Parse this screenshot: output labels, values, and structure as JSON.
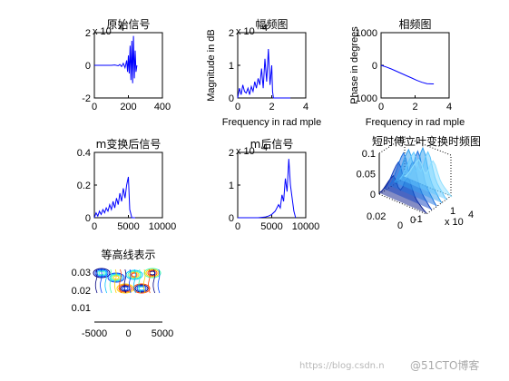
{
  "colors": {
    "line": "#0000ff",
    "axis": "#000000",
    "background": "#ffffff"
  },
  "chart_data": [
    {
      "id": "p1",
      "type": "line",
      "title": "原始信号",
      "exponent_label": "x 10",
      "exponent_power": "4",
      "xlim": [
        0,
        400
      ],
      "ylim": [
        -2,
        2
      ],
      "xticks": [
        "0",
        "200",
        "400"
      ],
      "yticks": [
        "-2",
        "0",
        "2"
      ],
      "series": [
        {
          "x": [
            0,
            100,
            120,
            140,
            150,
            160,
            170,
            180,
            190,
            195,
            200,
            205,
            210,
            215,
            220,
            225,
            230,
            235,
            240,
            245,
            250
          ],
          "y": [
            0,
            0,
            0.02,
            -0.03,
            0.05,
            -0.08,
            0.12,
            -0.15,
            0.3,
            -0.4,
            0.6,
            -0.5,
            1.2,
            -0.9,
            1.5,
            -1.1,
            1.8,
            -0.8,
            0.9,
            -0.4,
            0
          ]
        }
      ]
    },
    {
      "id": "p2",
      "type": "line",
      "title": "幅频图",
      "exponent_label": "x 10",
      "exponent_power": "4",
      "ylabel": "Magnitude in dB",
      "xlabel": "Frequency in rad mple",
      "xlim": [
        0,
        4
      ],
      "ylim": [
        0,
        2
      ],
      "xticks": [
        "0",
        "2",
        "4"
      ],
      "yticks": [
        "0",
        "1",
        "2"
      ],
      "series": [
        {
          "x": [
            0,
            0.1,
            0.2,
            0.3,
            0.4,
            0.5,
            0.6,
            0.7,
            0.8,
            0.9,
            1.0,
            1.1,
            1.2,
            1.3,
            1.4,
            1.5,
            1.6,
            1.7,
            1.8,
            1.9,
            2.0,
            2.05,
            2.1,
            2.2,
            2.5,
            3.0,
            3.1
          ],
          "y": [
            0,
            0.3,
            0.1,
            0.4,
            0.2,
            0.15,
            0.3,
            0.1,
            0.35,
            0.2,
            0.5,
            0.3,
            0.6,
            0.4,
            0.9,
            0.3,
            1.2,
            0.5,
            1.5,
            0.4,
            1.0,
            0.2,
            0,
            0,
            0,
            0,
            0
          ]
        }
      ]
    },
    {
      "id": "p3",
      "type": "line",
      "title": "相频图",
      "ylabel": "Phase in degrees",
      "xlabel": "Frequency in rad mple",
      "xlim": [
        0,
        4
      ],
      "ylim": [
        -1000,
        1000
      ],
      "xticks": [
        "0",
        "2",
        "4"
      ],
      "yticks": [
        "-1000",
        "0",
        "1000"
      ],
      "series": [
        {
          "x": [
            0,
            0.3,
            0.6,
            0.9,
            1.2,
            1.5,
            1.8,
            2.1,
            2.4,
            2.7,
            3.0,
            3.1
          ],
          "y": [
            0,
            -50,
            -110,
            -180,
            -250,
            -320,
            -390,
            -460,
            -520,
            -560,
            -570,
            -570
          ]
        }
      ]
    },
    {
      "id": "p4",
      "type": "line",
      "title": "m变换后信号",
      "xlim": [
        0,
        10000
      ],
      "ylim": [
        0,
        0.4
      ],
      "xticks": [
        "0",
        "5000",
        "10000"
      ],
      "yticks": [
        "0",
        "0.2",
        "0.4"
      ],
      "series": [
        {
          "x": [
            0,
            250,
            500,
            750,
            1000,
            1250,
            1500,
            1750,
            2000,
            2250,
            2500,
            2750,
            3000,
            3250,
            3500,
            3750,
            4000,
            4250,
            4500,
            4750,
            5000,
            5200,
            5500,
            6000
          ],
          "y": [
            0,
            0.03,
            0.01,
            0.04,
            0.02,
            0.05,
            0.03,
            0.06,
            0.04,
            0.08,
            0.05,
            0.1,
            0.06,
            0.12,
            0.08,
            0.15,
            0.1,
            0.18,
            0.12,
            0.2,
            0.25,
            0.05,
            0,
            0
          ]
        }
      ]
    },
    {
      "id": "p5",
      "type": "line",
      "title": "m后信号",
      "exponent_label": "x 10",
      "exponent_power": "4",
      "xlim": [
        0,
        10000
      ],
      "ylim": [
        0,
        2
      ],
      "xticks": [
        "0",
        "5000",
        "10000"
      ],
      "yticks": [
        "0",
        "1",
        "2"
      ],
      "series": [
        {
          "x": [
            0,
            3000,
            4000,
            4500,
            5000,
            5500,
            6000,
            6250,
            6500,
            6750,
            7000,
            7250,
            7500,
            7750,
            8000,
            8250,
            8500
          ],
          "y": [
            0,
            0,
            0.02,
            0.05,
            0.1,
            0.2,
            0.4,
            0.3,
            0.7,
            0.5,
            1.2,
            0.8,
            1.8,
            1.0,
            0.6,
            0.2,
            0
          ]
        }
      ]
    },
    {
      "id": "p6",
      "type": "surface",
      "title": "短时傅立叶变换时频图",
      "exponent_label": "x 10",
      "exponent_power": "4",
      "zticks": [
        "0",
        "0.05",
        "0.1"
      ],
      "yticks": [
        "0.02",
        "0"
      ],
      "xticks": [
        "0",
        "-1",
        "1"
      ]
    },
    {
      "id": "p7",
      "type": "contour",
      "title": "等高线表示",
      "xlim": [
        -5000,
        5000
      ],
      "ylim": [
        0,
        0.03
      ],
      "xticks": [
        "-5000",
        "0",
        "5000"
      ],
      "yticks": [
        "0.01",
        "0.02",
        "0.03"
      ]
    }
  ],
  "watermark": "https://blog.csdn.n",
  "watermark_brand": "@51CTO博客"
}
